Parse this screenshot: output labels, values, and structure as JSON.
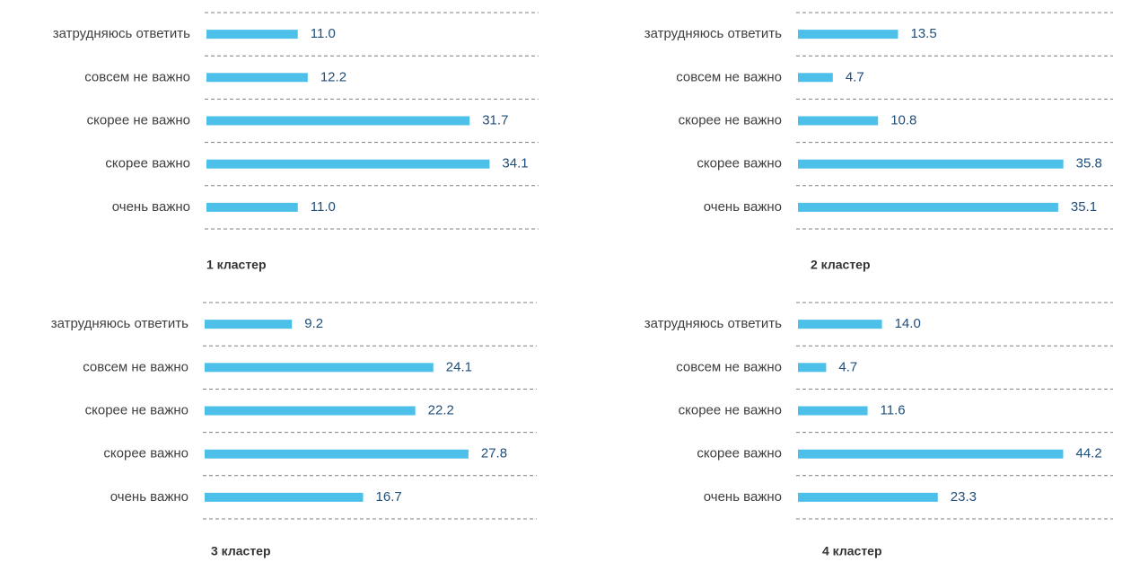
{
  "chart_data": [
    {
      "type": "bar",
      "orientation": "horizontal",
      "title": "1 кластер",
      "color": "#4dc0ea",
      "categories": [
        "затрудняюсь ответить",
        "совсем не важно",
        "скорее не важно",
        "скорее важно",
        "очень важно"
      ],
      "values": [
        11.0,
        12.2,
        31.7,
        34.1,
        11.0
      ],
      "value_labels": [
        "11.0",
        "12.2",
        "31.7",
        "34.1",
        "11.0"
      ],
      "xlim": [
        0,
        40
      ]
    },
    {
      "type": "bar",
      "orientation": "horizontal",
      "title": "2 кластер",
      "color": "#4dc0ea",
      "categories": [
        "затрудняюсь ответить",
        "совсем не важно",
        "скорее не важно",
        "скорее важно",
        "очень важно"
      ],
      "values": [
        13.5,
        4.7,
        10.8,
        35.8,
        35.1
      ],
      "value_labels": [
        "13.5",
        "4.7",
        "10.8",
        "35.8",
        "35.1"
      ],
      "xlim": [
        0,
        42.5
      ]
    },
    {
      "type": "bar",
      "orientation": "horizontal",
      "title": "3 кластер",
      "color": "#4dc0ea",
      "categories": [
        "затрудняюсь ответить",
        "совсем не важно",
        "скорее не важно",
        "скорее важно",
        "очень важно"
      ],
      "values": [
        9.2,
        24.1,
        22.2,
        27.8,
        16.7
      ],
      "value_labels": [
        "9.2",
        "24.1",
        "22.2",
        "27.8",
        "16.7"
      ],
      "xlim": [
        0,
        35
      ]
    },
    {
      "type": "bar",
      "orientation": "horizontal",
      "title": "4 кластер",
      "color": "#4dc0ea",
      "categories": [
        "затрудняюсь ответить",
        "совсем не важно",
        "скорее не важно",
        "скорее важно",
        "очень важно"
      ],
      "values": [
        14.0,
        4.7,
        11.6,
        44.2,
        23.3
      ],
      "value_labels": [
        "14.0",
        "4.7",
        "11.6",
        "44.2",
        "23.3"
      ],
      "xlim": [
        0,
        52.5
      ]
    }
  ]
}
